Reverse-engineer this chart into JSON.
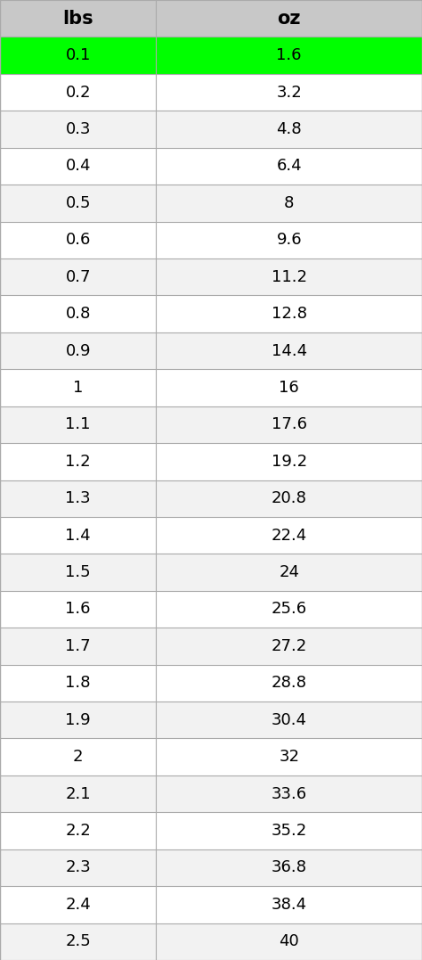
{
  "headers": [
    "lbs",
    "oz"
  ],
  "rows": [
    [
      "0.1",
      "1.6"
    ],
    [
      "0.2",
      "3.2"
    ],
    [
      "0.3",
      "4.8"
    ],
    [
      "0.4",
      "6.4"
    ],
    [
      "0.5",
      "8"
    ],
    [
      "0.6",
      "9.6"
    ],
    [
      "0.7",
      "11.2"
    ],
    [
      "0.8",
      "12.8"
    ],
    [
      "0.9",
      "14.4"
    ],
    [
      "1",
      "16"
    ],
    [
      "1.1",
      "17.6"
    ],
    [
      "1.2",
      "19.2"
    ],
    [
      "1.3",
      "20.8"
    ],
    [
      "1.4",
      "22.4"
    ],
    [
      "1.5",
      "24"
    ],
    [
      "1.6",
      "25.6"
    ],
    [
      "1.7",
      "27.2"
    ],
    [
      "1.8",
      "28.8"
    ],
    [
      "1.9",
      "30.4"
    ],
    [
      "2",
      "32"
    ],
    [
      "2.1",
      "33.6"
    ],
    [
      "2.2",
      "35.2"
    ],
    [
      "2.3",
      "36.8"
    ],
    [
      "2.4",
      "38.4"
    ],
    [
      "2.5",
      "40"
    ]
  ],
  "header_bg": "#c8c8c8",
  "highlight_row_bg": "#00ff00",
  "row_bg_odd": "#f2f2f2",
  "row_bg_even": "#ffffff",
  "border_color": "#aaaaaa",
  "text_color": "#000000",
  "fig_width": 4.74,
  "fig_height": 10.77,
  "dpi": 100,
  "header_fontsize": 15,
  "cell_fontsize": 13
}
